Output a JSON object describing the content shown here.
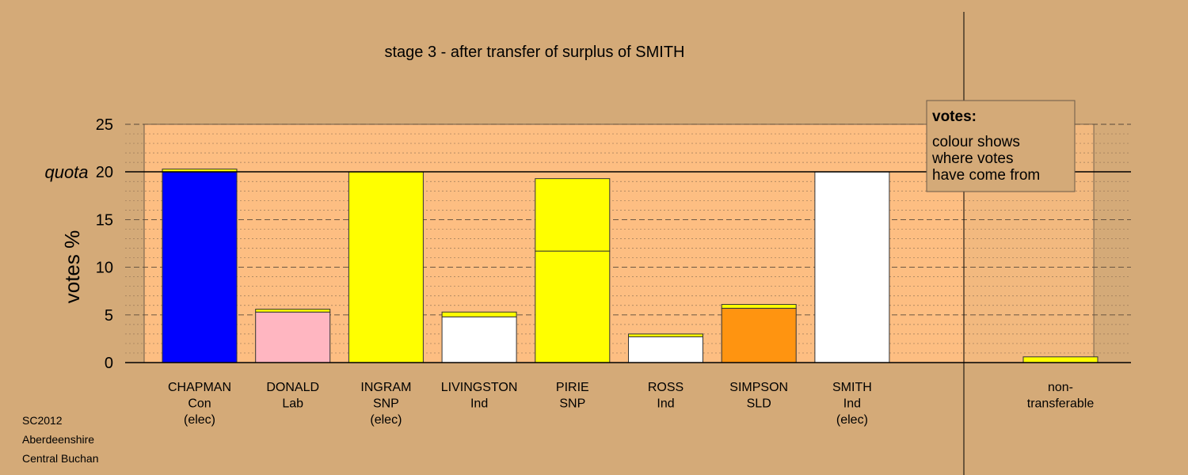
{
  "chart_data": {
    "type": "bar",
    "stacked": true,
    "title": "stage 3 - after transfer of surplus of SMITH",
    "ylabel": "votes %",
    "ylim": [
      0,
      25
    ],
    "yticks": [
      0,
      5,
      10,
      15,
      20,
      25
    ],
    "quota": 20,
    "quota_label": "quota",
    "grid": true,
    "candidates": [
      {
        "lines": [
          "CHAPMAN",
          "Con",
          "(elec)"
        ],
        "segments": [
          {
            "value": 20.0,
            "color": "#0000ff"
          },
          {
            "value": 0.3,
            "color": "#ffff00"
          }
        ]
      },
      {
        "lines": [
          "DONALD",
          "Lab"
        ],
        "segments": [
          {
            "value": 5.3,
            "color": "#ffb6c1"
          },
          {
            "value": 0.3,
            "color": "#ffff00"
          }
        ]
      },
      {
        "lines": [
          "INGRAM",
          "SNP",
          "(elec)"
        ],
        "segments": [
          {
            "value": 20.0,
            "color": "#ffff00"
          }
        ]
      },
      {
        "lines": [
          "LIVINGSTON",
          "Ind"
        ],
        "segments": [
          {
            "value": 4.8,
            "color": "#ffffff"
          },
          {
            "value": 0.5,
            "color": "#ffff00"
          }
        ]
      },
      {
        "lines": [
          "PIRIE",
          "SNP"
        ],
        "segments": [
          {
            "value": 11.7,
            "color": "#ffff00"
          },
          {
            "value": 7.6,
            "color": "#ffff00"
          }
        ]
      },
      {
        "lines": [
          "ROSS",
          "Ind"
        ],
        "segments": [
          {
            "value": 2.7,
            "color": "#ffffff"
          },
          {
            "value": 0.3,
            "color": "#ffff00"
          }
        ]
      },
      {
        "lines": [
          "SIMPSON",
          "SLD"
        ],
        "segments": [
          {
            "value": 5.7,
            "color": "#ff9410"
          },
          {
            "value": 0.4,
            "color": "#ffff00"
          }
        ]
      },
      {
        "lines": [
          "SMITH",
          "Ind",
          "(elec)"
        ],
        "segments": [
          {
            "value": 20.0,
            "color": "#ffffff"
          }
        ]
      }
    ],
    "nontransferable": {
      "lines": [
        "non-",
        "transferable"
      ],
      "segments": [
        {
          "value": 0.6,
          "color": "#ffff00"
        }
      ]
    }
  },
  "legend": {
    "heading": "votes:",
    "lines": [
      "colour shows",
      "where votes",
      "have come from"
    ]
  },
  "source": [
    "SC2012",
    "Aberdeenshire",
    "Central Buchan"
  ]
}
